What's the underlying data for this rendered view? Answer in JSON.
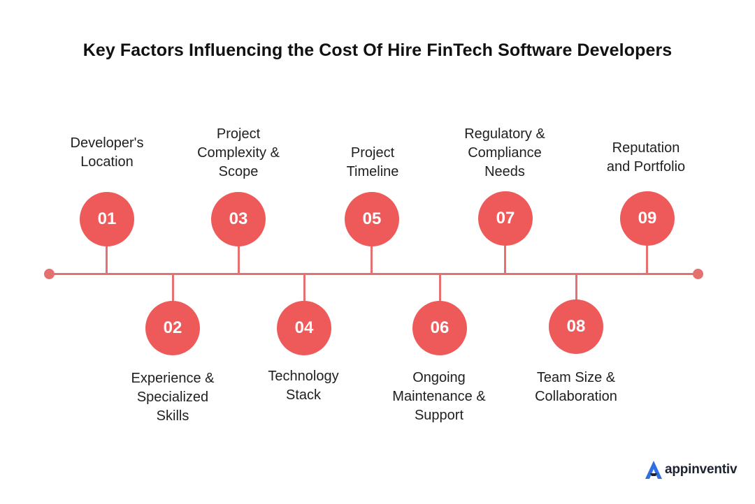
{
  "title": "Key Factors Influencing the Cost Of Hire FinTech Software Developers",
  "steps": [
    {
      "number": "01",
      "lines": [
        "Developer's",
        "Location"
      ]
    },
    {
      "number": "02",
      "lines": [
        "Experience &",
        "Specialized",
        "Skills"
      ]
    },
    {
      "number": "03",
      "lines": [
        "Project",
        "Complexity &",
        "Scope"
      ]
    },
    {
      "number": "04",
      "lines": [
        "Technology",
        "Stack"
      ]
    },
    {
      "number": "05",
      "lines": [
        "Project",
        "Timeline"
      ]
    },
    {
      "number": "06",
      "lines": [
        "Ongoing",
        "Maintenance &",
        "Support"
      ]
    },
    {
      "number": "07",
      "lines": [
        "Regulatory &",
        "Compliance",
        "Needs"
      ]
    },
    {
      "number": "08",
      "lines": [
        "Team Size &",
        "Collaboration"
      ]
    },
    {
      "number": "09",
      "lines": [
        "Reputation",
        "and Portfolio"
      ]
    }
  ],
  "brand": {
    "name": "appinventiv",
    "accent": "#2f6fe4"
  },
  "colors": {
    "circle": "#ee5a5a",
    "line": "#e4716f"
  }
}
